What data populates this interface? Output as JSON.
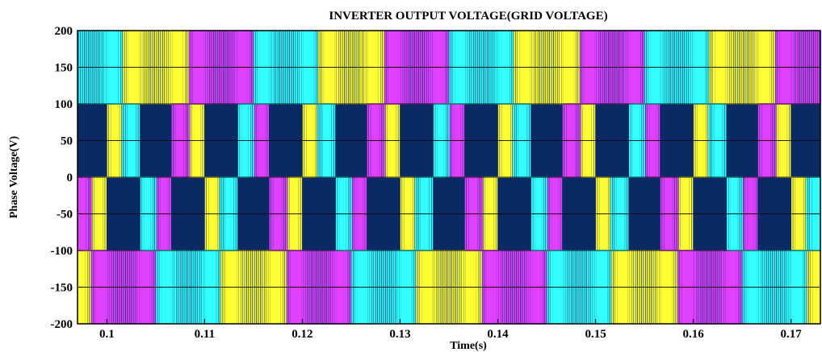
{
  "chart_data": {
    "type": "line",
    "title": "INVERTER OUTPUT VOLTAGE(GRID VOLTAGE)",
    "xlabel": "Time(s)",
    "ylabel": "Phase Voltage(V)",
    "xlim": [
      0.097,
      0.173
    ],
    "ylim": [
      -200,
      200
    ],
    "x_ticks": [
      0.1,
      0.11,
      0.12,
      0.13,
      0.14,
      0.15,
      0.16,
      0.17
    ],
    "x_tick_labels": [
      "0.1",
      "0.11",
      "0.12",
      "0.13",
      "0.14",
      "0.15",
      "0.16",
      "0.17"
    ],
    "y_ticks": [
      200,
      150,
      100,
      50,
      0,
      -50,
      -100,
      -150,
      -200
    ],
    "y_tick_labels": [
      "200",
      "150",
      "100",
      "50",
      "0",
      "-50",
      "-100",
      "-150",
      "-200"
    ],
    "grid": true,
    "plot_background": "#0a2a66",
    "grid_color": "#000000",
    "series": [
      {
        "phase_deg": 0,
        "color": "#ffff33",
        "peak": 200,
        "step": 100,
        "frequency_hz": 50,
        "switching_hz": 5000
      },
      {
        "phase_deg": -120,
        "color": "#e040ff",
        "peak": 200,
        "step": 100,
        "frequency_hz": 50,
        "switching_hz": 5000
      },
      {
        "phase_deg": 120,
        "color": "#33ffff",
        "peak": 200,
        "step": 100,
        "frequency_hz": 50,
        "switching_hz": 5000
      }
    ]
  }
}
